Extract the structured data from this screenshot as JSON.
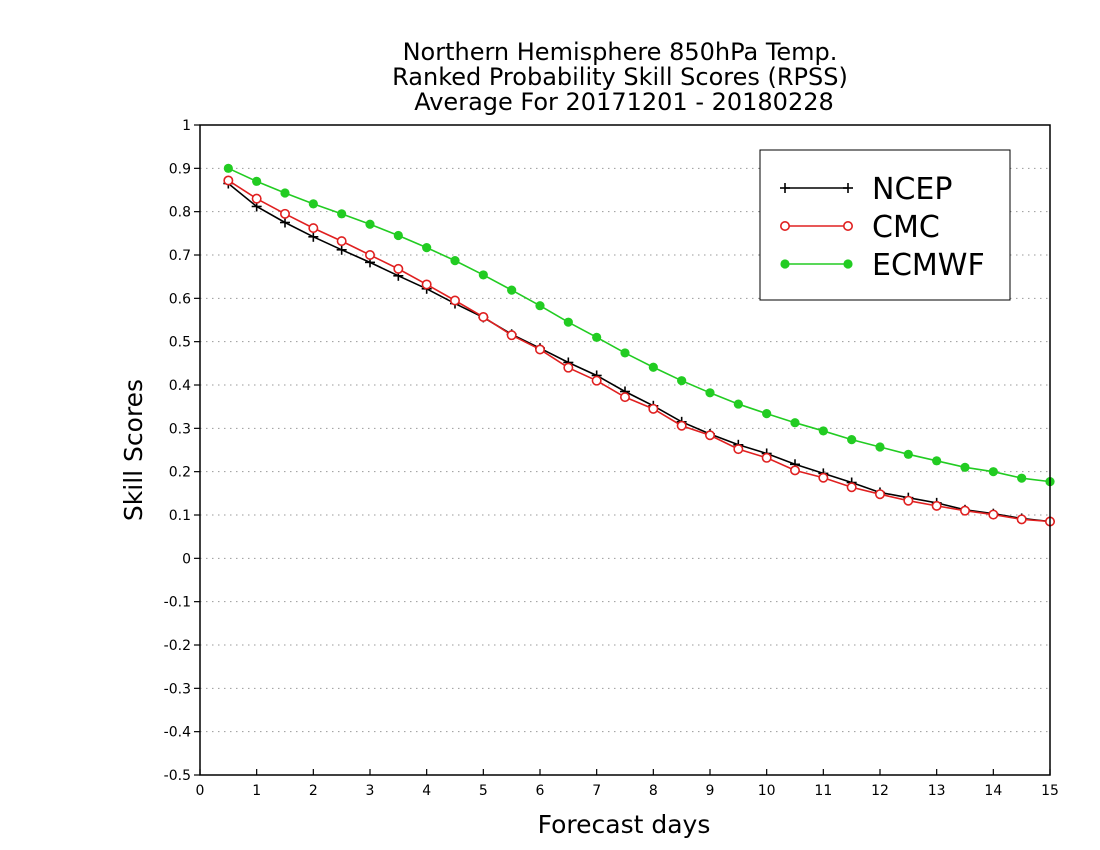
{
  "chart_data": {
    "type": "line",
    "title_lines": [
      "Northern Hemisphere 850hPa Temp.",
      "Ranked Probability Skill Scores (RPSS)",
      "Average For 20171201 - 20180228"
    ],
    "xlabel": "Forecast days",
    "ylabel": "Skill Scores",
    "xlim": [
      0,
      15
    ],
    "ylim": [
      -0.5,
      1
    ],
    "x_ticks": [
      0,
      1,
      2,
      3,
      4,
      5,
      6,
      7,
      8,
      9,
      10,
      11,
      12,
      13,
      14,
      15
    ],
    "x_tick_labels": [
      "0",
      "1",
      "2",
      "3",
      "4",
      "5",
      "6",
      "7",
      "8",
      "9",
      "10",
      "11",
      "12",
      "13",
      "14",
      "15"
    ],
    "y_ticks": [
      -0.5,
      -0.4,
      -0.3,
      -0.2,
      -0.1,
      0,
      0.1,
      0.2,
      0.3,
      0.4,
      0.5,
      0.6,
      0.7,
      0.8,
      0.9,
      1
    ],
    "y_tick_labels": [
      "-0.5",
      "-0.4",
      "-0.3",
      "-0.2",
      "-0.1",
      "0",
      "0.1",
      "0.2",
      "0.3",
      "0.4",
      "0.5",
      "0.6",
      "0.7",
      "0.8",
      "0.9",
      "1"
    ],
    "grid": "horizontal dotted",
    "legend_position": "top-right",
    "x": [
      0.5,
      1,
      1.5,
      2,
      2.5,
      3,
      3.5,
      4,
      4.5,
      5,
      5.5,
      6,
      6.5,
      7,
      7.5,
      8,
      8.5,
      9,
      9.5,
      10,
      10.5,
      11,
      11.5,
      12,
      12.5,
      13,
      13.5,
      14,
      14.5,
      15
    ],
    "series": [
      {
        "name": "NCEP",
        "color": "#000000",
        "marker": "plus",
        "values": [
          0.865,
          0.812,
          0.775,
          0.742,
          0.712,
          0.683,
          0.652,
          0.622,
          0.588,
          0.556,
          0.517,
          0.485,
          0.452,
          0.422,
          0.385,
          0.352,
          0.315,
          0.287,
          0.262,
          0.242,
          0.217,
          0.196,
          0.175,
          0.152,
          0.14,
          0.128,
          0.112,
          0.103,
          0.092,
          0.085
        ]
      },
      {
        "name": "CMC",
        "color": "#e02020",
        "marker": "open-circle",
        "values": [
          0.872,
          0.83,
          0.795,
          0.762,
          0.732,
          0.7,
          0.668,
          0.632,
          0.595,
          0.557,
          0.515,
          0.482,
          0.44,
          0.41,
          0.372,
          0.345,
          0.306,
          0.284,
          0.252,
          0.232,
          0.203,
          0.186,
          0.164,
          0.148,
          0.133,
          0.121,
          0.11,
          0.101,
          0.09,
          0.085
        ]
      },
      {
        "name": "ECMWF",
        "color": "#22cc22",
        "marker": "filled-circle",
        "values": [
          0.9,
          0.87,
          0.843,
          0.818,
          0.795,
          0.771,
          0.745,
          0.717,
          0.687,
          0.654,
          0.619,
          0.583,
          0.545,
          0.51,
          0.474,
          0.441,
          0.41,
          0.382,
          0.356,
          0.334,
          0.313,
          0.294,
          0.274,
          0.257,
          0.24,
          0.225,
          0.21,
          0.2,
          0.185,
          0.177
        ]
      }
    ]
  }
}
